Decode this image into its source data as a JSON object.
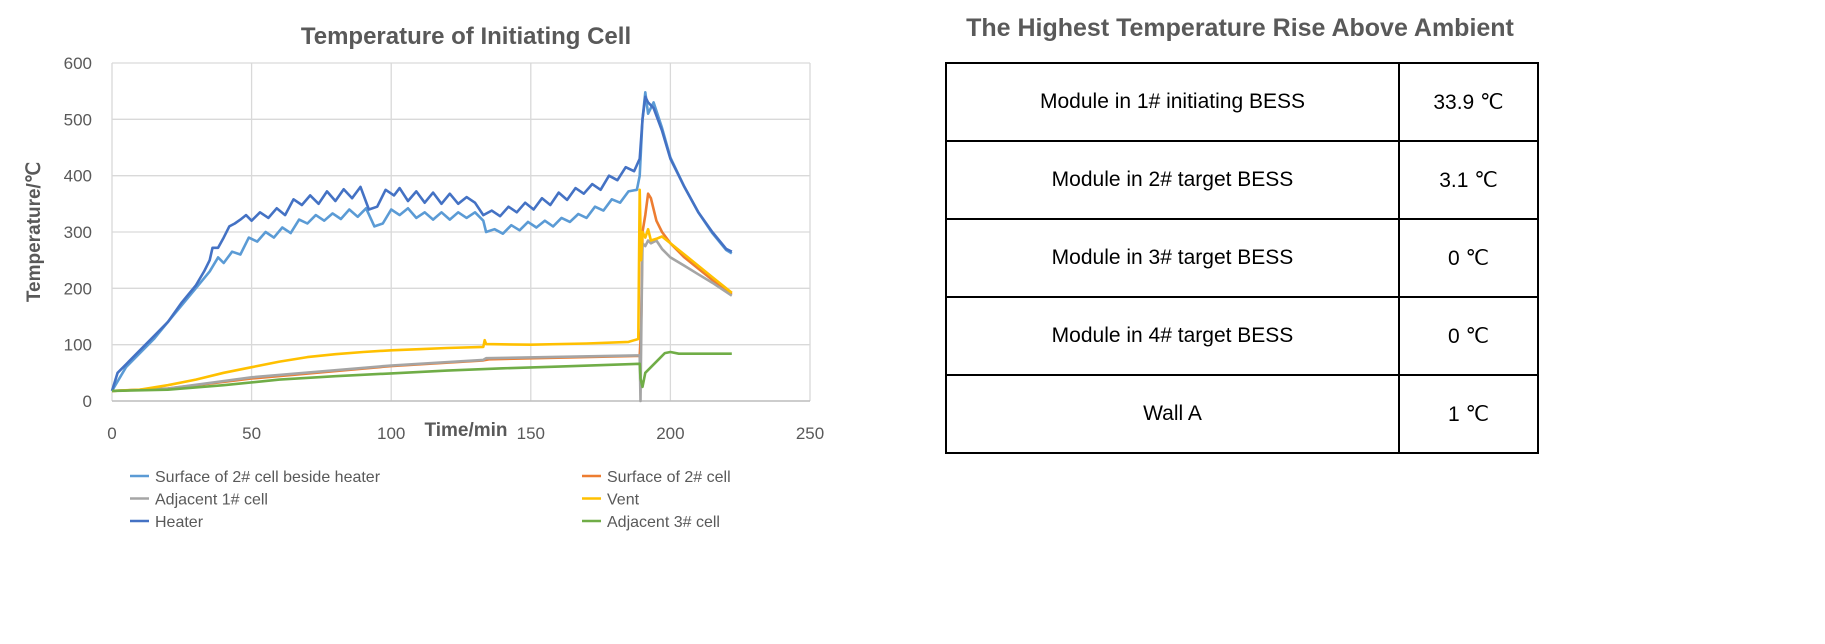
{
  "chart_data": {
    "type": "line",
    "title": "Temperature of Initiating Cell",
    "xlabel": "Time/min",
    "ylabel": "Temperature/℃",
    "xlim": [
      0,
      250
    ],
    "ylim": [
      0,
      600
    ],
    "xticks": [
      0,
      50,
      100,
      150,
      200,
      250
    ],
    "yticks": [
      0,
      100,
      200,
      300,
      400,
      500,
      600
    ],
    "grid": true,
    "legend_position": "bottom",
    "series": [
      {
        "name": "Surface of 2# cell beside heater",
        "color": "#5b9bd5",
        "points": [
          [
            0,
            18
          ],
          [
            5,
            60
          ],
          [
            10,
            85
          ],
          [
            15,
            110
          ],
          [
            20,
            140
          ],
          [
            25,
            170
          ],
          [
            30,
            200
          ],
          [
            35,
            230
          ],
          [
            38,
            255
          ],
          [
            40,
            245
          ],
          [
            43,
            265
          ],
          [
            46,
            260
          ],
          [
            49,
            290
          ],
          [
            52,
            283
          ],
          [
            55,
            300
          ],
          [
            58,
            290
          ],
          [
            61,
            308
          ],
          [
            64,
            298
          ],
          [
            67,
            322
          ],
          [
            70,
            315
          ],
          [
            73,
            330
          ],
          [
            76,
            320
          ],
          [
            79,
            333
          ],
          [
            82,
            323
          ],
          [
            85,
            340
          ],
          [
            88,
            327
          ],
          [
            91,
            342
          ],
          [
            94,
            310
          ],
          [
            97,
            315
          ],
          [
            100,
            340
          ],
          [
            103,
            330
          ],
          [
            106,
            342
          ],
          [
            109,
            325
          ],
          [
            112,
            335
          ],
          [
            115,
            322
          ],
          [
            118,
            335
          ],
          [
            121,
            322
          ],
          [
            124,
            335
          ],
          [
            127,
            325
          ],
          [
            130,
            335
          ],
          [
            133,
            320
          ],
          [
            134,
            300
          ],
          [
            137,
            305
          ],
          [
            140,
            297
          ],
          [
            143,
            312
          ],
          [
            146,
            303
          ],
          [
            149,
            318
          ],
          [
            152,
            308
          ],
          [
            155,
            320
          ],
          [
            158,
            310
          ],
          [
            161,
            325
          ],
          [
            164,
            318
          ],
          [
            167,
            332
          ],
          [
            170,
            325
          ],
          [
            173,
            345
          ],
          [
            176,
            338
          ],
          [
            179,
            358
          ],
          [
            182,
            352
          ],
          [
            185,
            372
          ],
          [
            188,
            375
          ],
          [
            189,
            400
          ],
          [
            190,
            500
          ],
          [
            191,
            548
          ],
          [
            192,
            510
          ],
          [
            194,
            530
          ],
          [
            197,
            485
          ],
          [
            200,
            432
          ],
          [
            205,
            380
          ],
          [
            210,
            335
          ],
          [
            215,
            298
          ],
          [
            220,
            268
          ],
          [
            222,
            262
          ]
        ]
      },
      {
        "name": "Surface of 2# cell",
        "color": "#ed7d31",
        "points": [
          [
            0,
            18
          ],
          [
            20,
            22
          ],
          [
            50,
            40
          ],
          [
            100,
            62
          ],
          [
            133,
            72
          ],
          [
            135,
            74
          ],
          [
            189,
            80
          ],
          [
            189.5,
            130
          ],
          [
            190,
            300
          ],
          [
            191,
            330
          ],
          [
            192,
            368
          ],
          [
            193,
            360
          ],
          [
            195,
            320
          ],
          [
            197,
            300
          ],
          [
            200,
            280
          ],
          [
            205,
            255
          ],
          [
            210,
            235
          ],
          [
            215,
            215
          ],
          [
            222,
            190
          ]
        ]
      },
      {
        "name": "Adjacent 1# cell",
        "color": "#a5a5a5",
        "points": [
          [
            0,
            18
          ],
          [
            20,
            22
          ],
          [
            50,
            42
          ],
          [
            100,
            63
          ],
          [
            133,
            73
          ],
          [
            134,
            76
          ],
          [
            189,
            81
          ],
          [
            189.3,
            0
          ],
          [
            189.6,
            140
          ],
          [
            190,
            280
          ],
          [
            191,
            275
          ],
          [
            192,
            285
          ],
          [
            193,
            280
          ],
          [
            195,
            285
          ],
          [
            197,
            270
          ],
          [
            200,
            255
          ],
          [
            205,
            240
          ],
          [
            210,
            225
          ],
          [
            215,
            210
          ],
          [
            222,
            187
          ]
        ]
      },
      {
        "name": "Vent",
        "color": "#ffc000",
        "points": [
          [
            0,
            18
          ],
          [
            10,
            20
          ],
          [
            20,
            28
          ],
          [
            30,
            38
          ],
          [
            40,
            50
          ],
          [
            50,
            60
          ],
          [
            60,
            70
          ],
          [
            70,
            78
          ],
          [
            80,
            83
          ],
          [
            90,
            87
          ],
          [
            100,
            90
          ],
          [
            110,
            92
          ],
          [
            120,
            94
          ],
          [
            133,
            96
          ],
          [
            133.5,
            108
          ],
          [
            134,
            101
          ],
          [
            150,
            100
          ],
          [
            170,
            102
          ],
          [
            185,
            105
          ],
          [
            188.5,
            110
          ],
          [
            189,
            375
          ],
          [
            189.5,
            250
          ],
          [
            190,
            300
          ],
          [
            191,
            290
          ],
          [
            192,
            305
          ],
          [
            193,
            285
          ],
          [
            195,
            288
          ],
          [
            197,
            292
          ],
          [
            200,
            280
          ],
          [
            205,
            260
          ],
          [
            210,
            240
          ],
          [
            215,
            220
          ],
          [
            222,
            192
          ]
        ]
      },
      {
        "name": "Heater",
        "color": "#4472c4",
        "points": [
          [
            0,
            18
          ],
          [
            2,
            50
          ],
          [
            5,
            65
          ],
          [
            10,
            90
          ],
          [
            15,
            115
          ],
          [
            20,
            140
          ],
          [
            25,
            175
          ],
          [
            30,
            205
          ],
          [
            33,
            230
          ],
          [
            35,
            250
          ],
          [
            36,
            272
          ],
          [
            38,
            272
          ],
          [
            40,
            290
          ],
          [
            42,
            310
          ],
          [
            44,
            315
          ],
          [
            46,
            322
          ],
          [
            48,
            330
          ],
          [
            50,
            320
          ],
          [
            53,
            335
          ],
          [
            56,
            325
          ],
          [
            59,
            342
          ],
          [
            62,
            330
          ],
          [
            65,
            358
          ],
          [
            68,
            348
          ],
          [
            71,
            365
          ],
          [
            74,
            350
          ],
          [
            77,
            372
          ],
          [
            80,
            355
          ],
          [
            83,
            376
          ],
          [
            86,
            360
          ],
          [
            89,
            380
          ],
          [
            92,
            340
          ],
          [
            95,
            345
          ],
          [
            98,
            375
          ],
          [
            101,
            365
          ],
          [
            103,
            378
          ],
          [
            106,
            355
          ],
          [
            109,
            372
          ],
          [
            112,
            352
          ],
          [
            115,
            370
          ],
          [
            118,
            350
          ],
          [
            121,
            368
          ],
          [
            124,
            350
          ],
          [
            127,
            362
          ],
          [
            130,
            352
          ],
          [
            133,
            330
          ],
          [
            136,
            338
          ],
          [
            139,
            328
          ],
          [
            142,
            345
          ],
          [
            145,
            335
          ],
          [
            148,
            352
          ],
          [
            151,
            340
          ],
          [
            154,
            360
          ],
          [
            157,
            348
          ],
          [
            160,
            370
          ],
          [
            163,
            357
          ],
          [
            166,
            378
          ],
          [
            169,
            368
          ],
          [
            172,
            385
          ],
          [
            175,
            375
          ],
          [
            178,
            400
          ],
          [
            181,
            392
          ],
          [
            184,
            415
          ],
          [
            187,
            408
          ],
          [
            189,
            430
          ],
          [
            190,
            500
          ],
          [
            191,
            540
          ],
          [
            192,
            530
          ],
          [
            194,
            520
          ],
          [
            197,
            480
          ],
          [
            200,
            430
          ],
          [
            205,
            380
          ],
          [
            210,
            335
          ],
          [
            215,
            300
          ],
          [
            220,
            270
          ],
          [
            222,
            265
          ]
        ]
      },
      {
        "name": "Adjacent 3# cell",
        "color": "#70ad47",
        "points": [
          [
            0,
            18
          ],
          [
            20,
            20
          ],
          [
            40,
            28
          ],
          [
            60,
            38
          ],
          [
            80,
            44
          ],
          [
            100,
            49
          ],
          [
            120,
            54
          ],
          [
            140,
            58
          ],
          [
            160,
            61
          ],
          [
            189,
            66
          ],
          [
            189.3,
            40
          ],
          [
            190,
            25
          ],
          [
            191,
            50
          ],
          [
            193,
            60
          ],
          [
            196,
            75
          ],
          [
            198,
            85
          ],
          [
            200,
            87
          ],
          [
            203,
            84
          ],
          [
            210,
            84
          ],
          [
            222,
            84
          ]
        ]
      }
    ]
  },
  "table": {
    "title": "The Highest Temperature Rise Above Ambient",
    "rows": [
      {
        "location": "Module in 1# initiating BESS",
        "value": "33.9 ℃"
      },
      {
        "location": "Module in 2# target BESS",
        "value": "3.1 ℃"
      },
      {
        "location": "Module in 3# target BESS",
        "value": "0 ℃"
      },
      {
        "location": "Module in 4# target BESS",
        "value": "0 ℃"
      },
      {
        "location": "Wall A",
        "value": "1 ℃"
      }
    ]
  }
}
